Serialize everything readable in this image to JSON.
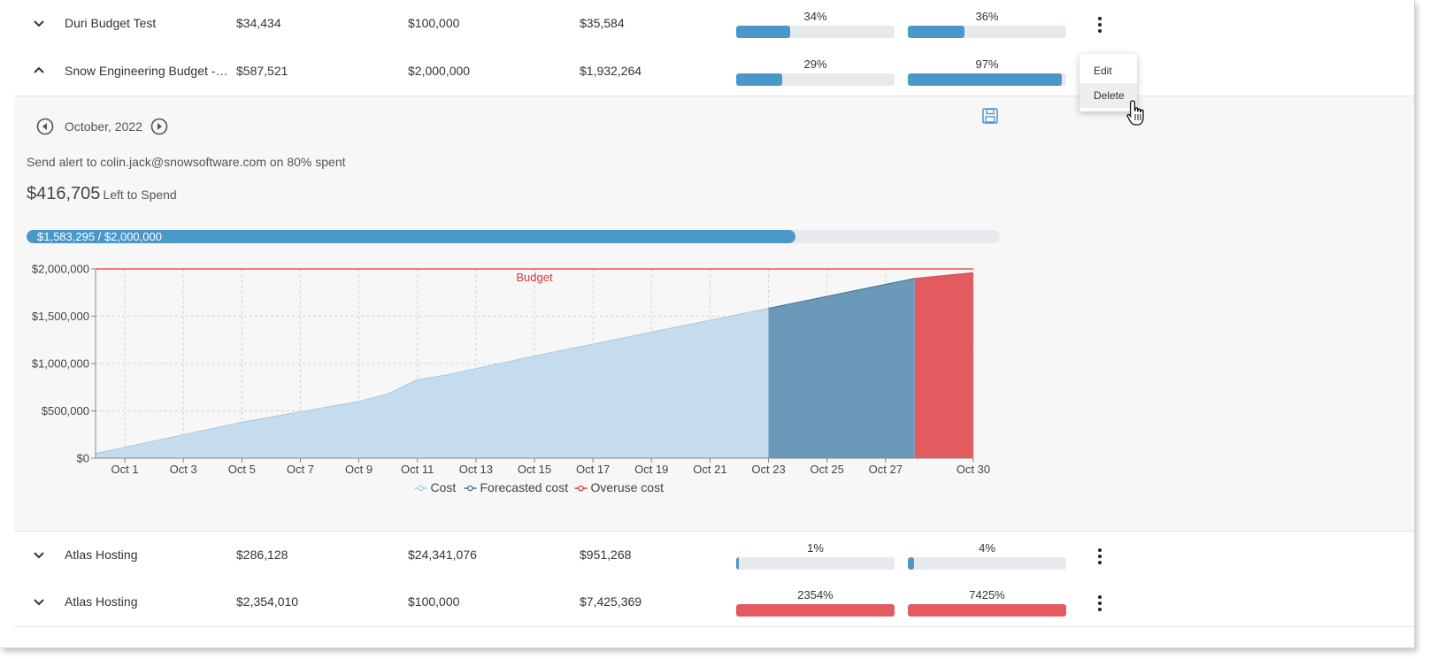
{
  "colors": {
    "accent": "#4a97c9",
    "track": "#e6e9ed",
    "over": "#e35a5f",
    "forecast": "#6a99ba",
    "cost_area": "#c4dced",
    "budget_line": "#e0343f"
  },
  "rows": [
    {
      "name": "Duri Budget Test",
      "col_a": "$34,434",
      "col_b": "$100,000",
      "col_c": "$35,584",
      "pct1": "34%",
      "pct1_value": 34,
      "pct2": "36%",
      "pct2_value": 36,
      "expanded": false
    },
    {
      "name": "Snow Engineering Budget - ...",
      "col_a": "$587,521",
      "col_b": "$2,000,000",
      "col_c": "$1,932,264",
      "pct1": "29%",
      "pct1_value": 29,
      "pct2": "97%",
      "pct2_value": 97,
      "expanded": true
    },
    {
      "name": "Atlas Hosting",
      "col_a": "$286,128",
      "col_b": "$24,341,076",
      "col_c": "$951,268",
      "pct1": "1%",
      "pct1_value": 1,
      "pct2": "4%",
      "pct2_value": 4,
      "expanded": false
    },
    {
      "name": "Atlas Hosting",
      "col_a": "$2,354,010",
      "col_b": "$100,000",
      "col_c": "$7,425,369",
      "pct1": "2354%",
      "pct1_value": 2354,
      "pct2": "7425%",
      "pct2_value": 7425,
      "expanded": false
    }
  ],
  "context_menu": {
    "edit": "Edit",
    "delete": "Delete"
  },
  "detail": {
    "month": "October, 2022",
    "alert": "Send alert to colin.jack@snowsoftware.com on 80% spent",
    "left_amount": "$416,705",
    "left_label": "Left to Spend",
    "spend_text": "$1,583,295 / $2,000,000",
    "spend_fraction": 0.79
  },
  "chart_data": {
    "type": "area",
    "budget_label": "Budget",
    "budget": 2000000,
    "ylim": [
      0,
      2000000
    ],
    "yticks": [
      0,
      500000,
      1000000,
      1500000,
      2000000
    ],
    "ytick_labels": [
      "$0",
      "$500,000",
      "$1,000,000",
      "$1,500,000",
      "$2,000,000"
    ],
    "xlim": [
      0,
      30
    ],
    "xticks": [
      1,
      3,
      5,
      7,
      9,
      11,
      13,
      15,
      17,
      19,
      21,
      23,
      25,
      27,
      30
    ],
    "xtick_labels": [
      "Oct 1",
      "Oct 3",
      "Oct 5",
      "Oct 7",
      "Oct 9",
      "Oct 11",
      "Oct 13",
      "Oct 15",
      "Oct 17",
      "Oct 19",
      "Oct 21",
      "Oct 23",
      "Oct 25",
      "Oct 27",
      "Oct 30"
    ],
    "legend": [
      "Cost",
      "Forecasted cost",
      "Overuse cost"
    ],
    "legend_placement": "bottom",
    "grid": true,
    "series": [
      {
        "name": "Cost",
        "x": [
          0,
          5,
          9,
          10,
          11,
          12,
          15,
          23
        ],
        "y": [
          50000,
          380000,
          600000,
          680000,
          830000,
          880000,
          1080000,
          1583295
        ]
      },
      {
        "name": "Forecasted cost",
        "x": [
          23,
          28
        ],
        "y": [
          1583295,
          1900000
        ]
      },
      {
        "name": "Overuse cost",
        "x": [
          28,
          30
        ],
        "y": [
          1900000,
          1960000
        ]
      }
    ]
  }
}
